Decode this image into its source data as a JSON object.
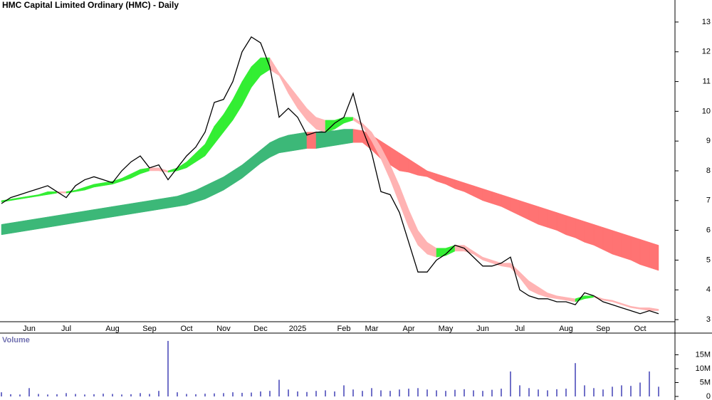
{
  "chart_data": [
    {
      "type": "ribbon",
      "title": "HMC Capital Limited Ordinary (HMC) - Daily",
      "categories": [
        null,
        null,
        null,
        "Jun",
        null,
        null,
        null,
        "Jul",
        null,
        null,
        null,
        null,
        "Aug",
        null,
        null,
        null,
        "Sep",
        null,
        null,
        null,
        "Oct",
        null,
        null,
        null,
        "Nov",
        null,
        null,
        null,
        "Dec",
        null,
        null,
        null,
        "2025",
        null,
        null,
        null,
        null,
        "Feb",
        null,
        null,
        "Mar",
        null,
        null,
        null,
        "Apr",
        null,
        null,
        null,
        "May",
        null,
        null,
        null,
        "Jun",
        null,
        null,
        null,
        "Jul",
        null,
        null,
        null,
        null,
        "Aug",
        null,
        null,
        null,
        "Sep",
        null,
        null,
        null,
        "Oct",
        null,
        null
      ],
      "close": {
        "color": "#000000",
        "values": [
          6.9,
          7.1,
          7.2,
          7.3,
          7.4,
          7.5,
          7.3,
          7.1,
          7.5,
          7.7,
          7.8,
          7.7,
          7.6,
          8.0,
          8.3,
          8.5,
          8.1,
          8.2,
          7.7,
          8.1,
          8.5,
          8.8,
          9.3,
          10.3,
          10.4,
          11.0,
          12.0,
          12.5,
          12.3,
          11.5,
          9.8,
          10.1,
          9.8,
          9.2,
          9.3,
          9.3,
          9.6,
          9.8,
          10.6,
          9.4,
          8.6,
          7.3,
          7.2,
          6.6,
          5.6,
          4.6,
          4.6,
          5.0,
          5.2,
          5.5,
          5.4,
          5.1,
          4.8,
          4.8,
          4.9,
          5.1,
          4.0,
          3.8,
          3.7,
          3.7,
          3.6,
          3.6,
          3.5,
          3.9,
          3.8,
          3.6,
          3.5,
          3.4,
          3.3,
          3.2,
          3.3,
          3.2
        ]
      },
      "bands": [
        {
          "up_color": "#3cb878",
          "down_color": "#ff7373",
          "upper": [
            6.2,
            6.25,
            6.3,
            6.35,
            6.4,
            6.45,
            6.5,
            6.55,
            6.6,
            6.65,
            6.7,
            6.75,
            6.8,
            6.85,
            6.9,
            6.95,
            7.0,
            7.05,
            7.1,
            7.15,
            7.25,
            7.35,
            7.5,
            7.65,
            7.8,
            8.0,
            8.2,
            8.45,
            8.7,
            8.95,
            9.1,
            9.2,
            9.25,
            9.3,
            9.3,
            9.35,
            9.35,
            9.4,
            9.4,
            9.35,
            9.2,
            9.0,
            8.8,
            8.6,
            8.4,
            8.2,
            8.0,
            7.9,
            7.8,
            7.7,
            7.6,
            7.5,
            7.4,
            7.3,
            7.2,
            7.1,
            7.0,
            6.9,
            6.8,
            6.7,
            6.6,
            6.5,
            6.4,
            6.3,
            6.2,
            6.1,
            6.0,
            5.9,
            5.8,
            5.7,
            5.6,
            5.5
          ],
          "lower": [
            5.85,
            5.9,
            5.95,
            6.0,
            6.05,
            6.1,
            6.15,
            6.2,
            6.25,
            6.3,
            6.35,
            6.4,
            6.45,
            6.5,
            6.55,
            6.6,
            6.65,
            6.7,
            6.75,
            6.8,
            6.85,
            6.95,
            7.05,
            7.2,
            7.35,
            7.55,
            7.75,
            8.0,
            8.25,
            8.45,
            8.6,
            8.65,
            8.7,
            8.75,
            8.75,
            8.8,
            8.85,
            8.9,
            8.95,
            8.95,
            8.7,
            8.4,
            8.2,
            8.0,
            7.95,
            7.85,
            7.8,
            7.65,
            7.55,
            7.4,
            7.3,
            7.15,
            7.0,
            6.9,
            6.8,
            6.65,
            6.5,
            6.35,
            6.2,
            6.1,
            6.0,
            5.85,
            5.75,
            5.6,
            5.5,
            5.35,
            5.2,
            5.1,
            5.0,
            4.85,
            4.75,
            4.65
          ]
        },
        {
          "up_color": "#33ee33",
          "down_color": "#ffb3b3",
          "upper": [
            7.0,
            7.05,
            7.1,
            7.15,
            7.2,
            7.3,
            7.3,
            7.3,
            7.35,
            7.45,
            7.55,
            7.6,
            7.65,
            7.75,
            7.9,
            8.05,
            8.1,
            8.1,
            8.0,
            8.1,
            8.3,
            8.6,
            8.9,
            9.5,
            9.9,
            10.4,
            11.0,
            11.5,
            11.8,
            11.8,
            11.3,
            10.9,
            10.5,
            10.1,
            9.8,
            9.7,
            9.7,
            9.8,
            9.8,
            9.6,
            9.3,
            8.8,
            8.2,
            7.5,
            6.7,
            6.0,
            5.6,
            5.4,
            5.4,
            5.5,
            5.5,
            5.3,
            5.1,
            5.0,
            4.9,
            4.9,
            4.6,
            4.3,
            4.1,
            3.9,
            3.8,
            3.75,
            3.7,
            3.8,
            3.8,
            3.7,
            3.65,
            3.55,
            3.45,
            3.4,
            3.4,
            3.35
          ],
          "lower": [
            6.95,
            7.0,
            7.05,
            7.1,
            7.15,
            7.2,
            7.25,
            7.25,
            7.3,
            7.35,
            7.45,
            7.5,
            7.55,
            7.65,
            7.75,
            7.9,
            8.0,
            8.0,
            7.95,
            8.0,
            8.1,
            8.3,
            8.5,
            8.9,
            9.3,
            9.7,
            10.2,
            10.8,
            11.2,
            11.4,
            11.2,
            10.6,
            10.1,
            9.7,
            9.4,
            9.3,
            9.4,
            9.6,
            9.7,
            9.5,
            9.0,
            8.4,
            7.7,
            6.9,
            6.1,
            5.5,
            5.2,
            5.1,
            5.15,
            5.3,
            5.3,
            5.2,
            5.0,
            4.9,
            4.8,
            4.75,
            4.4,
            4.0,
            3.85,
            3.75,
            3.7,
            3.65,
            3.6,
            3.7,
            3.75,
            3.65,
            3.6,
            3.5,
            3.4,
            3.35,
            3.3,
            3.3
          ]
        }
      ],
      "ylim": [
        2.93,
        13.74
      ],
      "yticks": [
        3,
        4,
        5,
        6,
        7,
        8,
        9,
        10,
        11,
        12,
        13
      ]
    },
    {
      "type": "bar",
      "title": "Volume",
      "color": "#7070c8",
      "values": [
        1500000,
        800000,
        700000,
        3000000,
        900000,
        700000,
        800000,
        1200000,
        900000,
        700000,
        800000,
        1000000,
        900000,
        700000,
        800000,
        1200000,
        900000,
        2000000,
        20000000,
        1500000,
        900000,
        800000,
        1000000,
        1100000,
        1200000,
        1500000,
        1300000,
        1400000,
        1800000,
        2000000,
        6000000,
        2500000,
        1800000,
        1600000,
        2000000,
        2200000,
        1800000,
        4000000,
        2500000,
        2000000,
        3000000,
        2200000,
        2000000,
        2500000,
        2800000,
        3000000,
        2500000,
        2200000,
        2000000,
        2400000,
        2600000,
        2200000,
        2000000,
        2400000,
        2800000,
        9000000,
        4000000,
        3000000,
        2500000,
        2200000,
        2600000,
        2800000,
        12000000,
        4000000,
        3000000,
        2500000,
        3500000,
        4000000,
        3800000,
        5000000,
        9000000,
        3500000
      ],
      "ylim": [
        0,
        22300000
      ],
      "yticks": [
        0,
        {
          "value": 5000000,
          "label": "5M"
        },
        {
          "value": 10000000,
          "label": "10M"
        },
        {
          "value": 15000000,
          "label": "15M"
        }
      ]
    }
  ]
}
